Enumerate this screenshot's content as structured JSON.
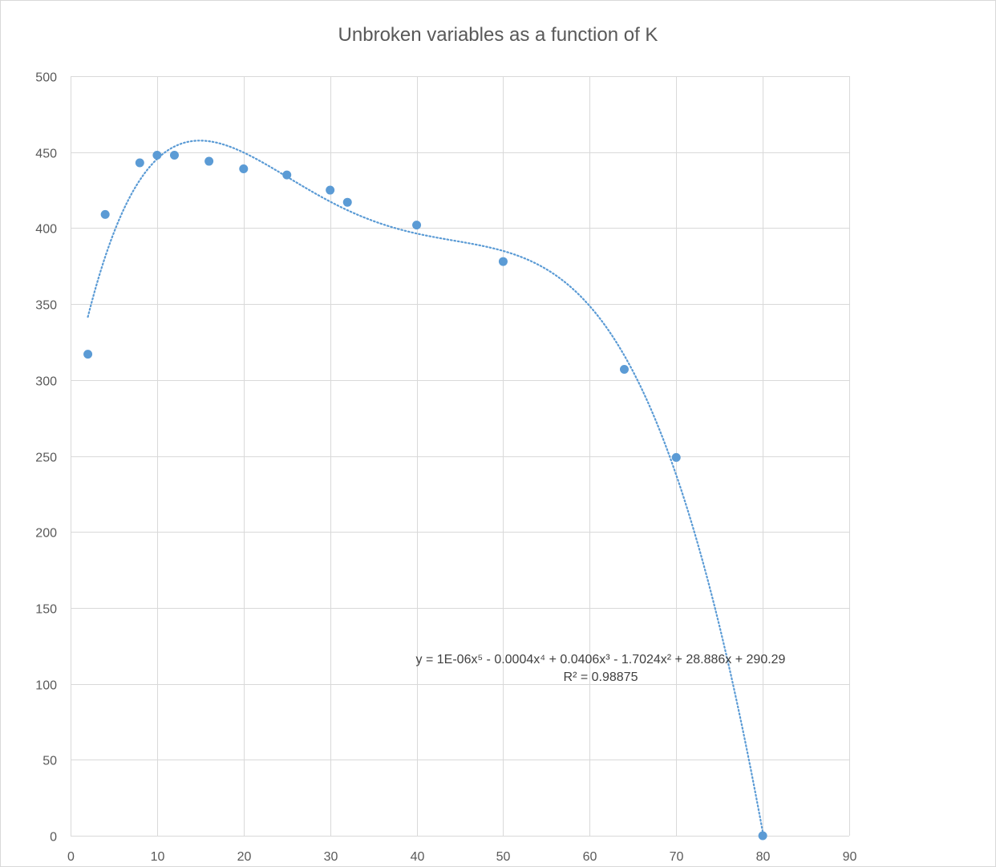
{
  "chart_data": {
    "type": "scatter",
    "title": "Unbroken variables as a function of K",
    "xlabel": "",
    "ylabel": "",
    "xlim": [
      0,
      90
    ],
    "ylim": [
      0,
      500
    ],
    "x_ticks": [
      0,
      10,
      20,
      30,
      40,
      50,
      60,
      70,
      80,
      90
    ],
    "y_ticks": [
      0,
      50,
      100,
      150,
      200,
      250,
      300,
      350,
      400,
      450,
      500
    ],
    "grid": true,
    "legend": "none",
    "series": [
      {
        "color": "#5b9bd5",
        "points": [
          {
            "x": 2,
            "y": 317
          },
          {
            "x": 4,
            "y": 409
          },
          {
            "x": 8,
            "y": 443
          },
          {
            "x": 10,
            "y": 448
          },
          {
            "x": 12,
            "y": 448
          },
          {
            "x": 16,
            "y": 444
          },
          {
            "x": 20,
            "y": 439
          },
          {
            "x": 25,
            "y": 435
          },
          {
            "x": 30,
            "y": 425
          },
          {
            "x": 32,
            "y": 417
          },
          {
            "x": 40,
            "y": 402
          },
          {
            "x": 50,
            "y": 378
          },
          {
            "x": 64,
            "y": 307
          },
          {
            "x": 70,
            "y": 249
          },
          {
            "x": 80,
            "y": 0
          }
        ]
      }
    ],
    "trendline": {
      "type": "polynomial",
      "order": 5,
      "style": "dotted",
      "color": "#5b9bd5",
      "x_range": [
        2,
        80
      ],
      "equation": "y = 1E-06x⁵ - 0.0004x⁴ + 0.0406x³ - 1.7024x² + 28.886x + 290.29",
      "r_squared": "R² = 0.98875"
    }
  }
}
